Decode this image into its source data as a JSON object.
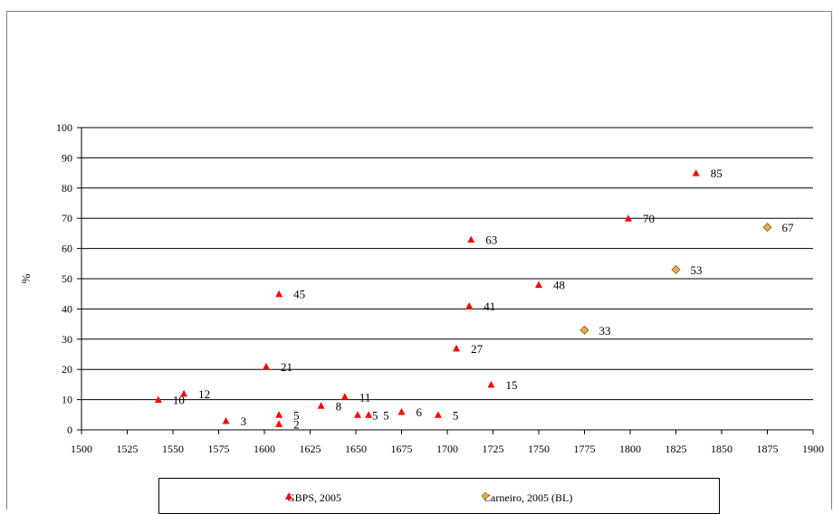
{
  "chart_data": {
    "type": "scatter",
    "ylabel": "%",
    "xlim": [
      1500,
      1900
    ],
    "ylim": [
      0,
      100
    ],
    "xticks": [
      1500,
      1525,
      1550,
      1575,
      1600,
      1625,
      1650,
      1675,
      1700,
      1725,
      1750,
      1775,
      1800,
      1825,
      1850,
      1875,
      1900
    ],
    "yticks": [
      0,
      10,
      20,
      30,
      40,
      50,
      60,
      70,
      80,
      90,
      100
    ],
    "grid": "horizontal",
    "legend_position": "bottom",
    "series": [
      {
        "name": "GBPS, 2005",
        "marker": "triangle",
        "color": "#ff0000",
        "points": [
          {
            "x": 1542,
            "y": 10,
            "label": "10"
          },
          {
            "x": 1556,
            "y": 12,
            "label": "12"
          },
          {
            "x": 1579,
            "y": 3,
            "label": "3"
          },
          {
            "x": 1601,
            "y": 21,
            "label": "21"
          },
          {
            "x": 1608,
            "y": 45,
            "label": "45"
          },
          {
            "x": 1608,
            "y": 5,
            "label": "5"
          },
          {
            "x": 1608,
            "y": 2,
            "label": "2"
          },
          {
            "x": 1631,
            "y": 8,
            "label": "8"
          },
          {
            "x": 1644,
            "y": 11,
            "label": "11"
          },
          {
            "x": 1651,
            "y": 5,
            "label": "5"
          },
          {
            "x": 1657,
            "y": 5,
            "label": "5"
          },
          {
            "x": 1675,
            "y": 6,
            "label": "6"
          },
          {
            "x": 1695,
            "y": 5,
            "label": "5"
          },
          {
            "x": 1705,
            "y": 27,
            "label": "27"
          },
          {
            "x": 1712,
            "y": 41,
            "label": "41"
          },
          {
            "x": 1713,
            "y": 63,
            "label": "63"
          },
          {
            "x": 1724,
            "y": 15,
            "label": "15"
          },
          {
            "x": 1750,
            "y": 48,
            "label": "48"
          },
          {
            "x": 1799,
            "y": 70,
            "label": "70"
          },
          {
            "x": 1836,
            "y": 85,
            "label": "85"
          }
        ]
      },
      {
        "name": "Carneiro, 2005 (BL)",
        "marker": "diamond",
        "color": "#e0b040",
        "points": [
          {
            "x": 1775,
            "y": 33,
            "label": "33"
          },
          {
            "x": 1825,
            "y": 53,
            "label": "53"
          },
          {
            "x": 1875,
            "y": 67,
            "label": "67"
          }
        ]
      }
    ]
  }
}
